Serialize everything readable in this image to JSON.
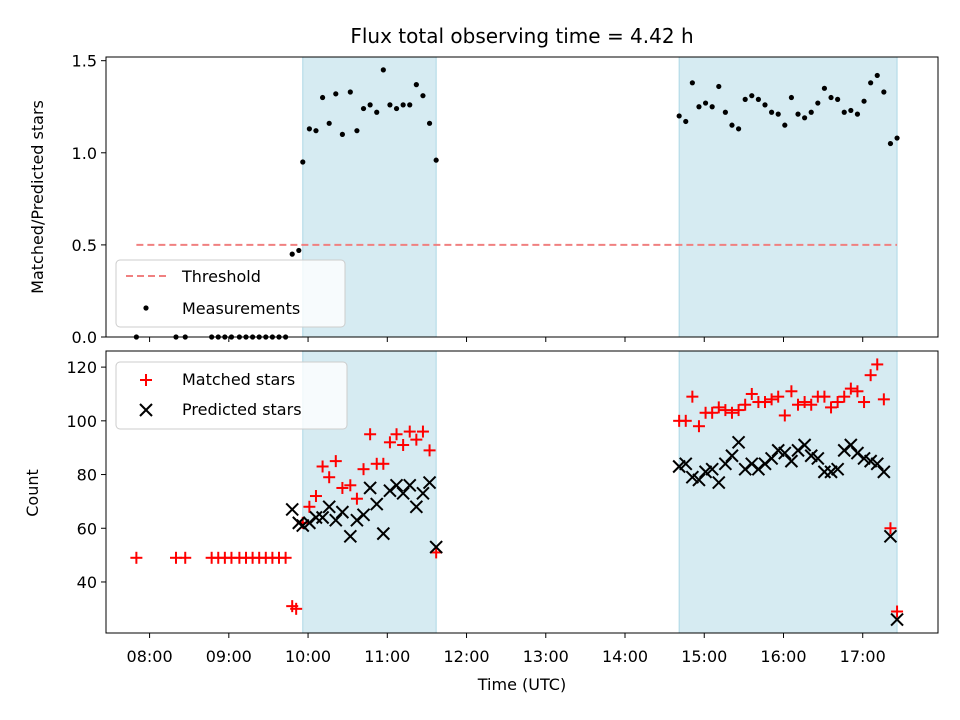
{
  "figure": {
    "title": "Flux total observing time = 4.42 h",
    "xlabel": "Time (UTC)",
    "x_ticks": [
      "08:00",
      "09:00",
      "10:00",
      "11:00",
      "12:00",
      "13:00",
      "14:00",
      "15:00",
      "16:00",
      "17:00"
    ]
  },
  "colors": {
    "band": "#add8e6",
    "threshold": "#f08080",
    "matched": "#ff0000",
    "predicted": "#000000",
    "measurement": "#000000"
  },
  "chart_data": [
    {
      "type": "scatter",
      "panel": "top",
      "ylabel": "Matched/Predicted stars",
      "y_ticks": [
        "0.0",
        "0.5",
        "1.0",
        "1.5"
      ],
      "ylim": [
        0,
        1.52
      ],
      "xlim": [
        "07:27",
        "17:57"
      ],
      "shaded_intervals": [
        [
          "09:56",
          "11:37"
        ],
        [
          "14:41",
          "17:26"
        ]
      ],
      "threshold": {
        "label": "Threshold",
        "value": 0.5,
        "x_range": [
          "07:50",
          "17:26"
        ]
      },
      "legend": {
        "position": "lower-left",
        "entries": [
          "Threshold",
          "Measurements"
        ]
      },
      "series": [
        {
          "name": "Measurements",
          "x": [
            "07:50",
            "08:20",
            "08:27",
            "08:47",
            "08:52",
            "08:57",
            "09:02",
            "09:08",
            "09:13",
            "09:18",
            "09:23",
            "09:28",
            "09:33",
            "09:38",
            "09:43",
            "09:48",
            "09:53",
            "09:56",
            "10:01",
            "10:06",
            "10:11",
            "10:16",
            "10:21",
            "10:26",
            "10:32",
            "10:37",
            "10:42",
            "10:47",
            "10:52",
            "10:57",
            "11:02",
            "11:07",
            "11:12",
            "11:17",
            "11:22",
            "11:27",
            "11:32",
            "11:37",
            "14:41",
            "14:46",
            "14:51",
            "14:56",
            "15:01",
            "15:06",
            "15:11",
            "15:16",
            "15:21",
            "15:26",
            "15:31",
            "15:36",
            "15:41",
            "15:46",
            "15:51",
            "15:56",
            "16:01",
            "16:06",
            "16:11",
            "16:16",
            "16:21",
            "16:26",
            "16:31",
            "16:36",
            "16:41",
            "16:46",
            "16:51",
            "16:56",
            "17:01",
            "17:06",
            "17:11",
            "17:16",
            "17:21",
            "17:26"
          ],
          "y": [
            0,
            0,
            0,
            0,
            0,
            0,
            0,
            0,
            0,
            0,
            0,
            0,
            0,
            0,
            0,
            0.45,
            0.47,
            0.95,
            1.13,
            1.12,
            1.3,
            1.16,
            1.32,
            1.1,
            1.33,
            1.12,
            1.24,
            1.26,
            1.22,
            1.45,
            1.26,
            1.24,
            1.26,
            1.26,
            1.37,
            1.31,
            1.16,
            0.96,
            1.2,
            1.17,
            1.38,
            1.25,
            1.27,
            1.25,
            1.36,
            1.22,
            1.15,
            1.13,
            1.29,
            1.31,
            1.29,
            1.26,
            1.22,
            1.21,
            1.15,
            1.3,
            1.21,
            1.19,
            1.22,
            1.27,
            1.35,
            1.3,
            1.29,
            1.22,
            1.23,
            1.21,
            1.28,
            1.38,
            1.42,
            1.33,
            1.05,
            1.08
          ]
        }
      ]
    },
    {
      "type": "scatter",
      "panel": "bottom",
      "ylabel": "Count",
      "y_ticks": [
        "40",
        "60",
        "80",
        "100",
        "120"
      ],
      "ylim": [
        21,
        126
      ],
      "xlim": [
        "07:27",
        "17:57"
      ],
      "shaded_intervals": [
        [
          "09:56",
          "11:37"
        ],
        [
          "14:41",
          "17:26"
        ]
      ],
      "legend": {
        "position": "upper-left",
        "entries": [
          "Matched stars",
          "Predicted stars"
        ]
      },
      "series": [
        {
          "name": "Matched stars",
          "marker": "plus",
          "x": [
            "07:50",
            "08:20",
            "08:27",
            "08:47",
            "08:52",
            "08:57",
            "09:02",
            "09:08",
            "09:13",
            "09:18",
            "09:23",
            "09:28",
            "09:33",
            "09:38",
            "09:43",
            "09:48",
            "09:51",
            "09:56",
            "10:01",
            "10:06",
            "10:11",
            "10:16",
            "10:21",
            "10:26",
            "10:32",
            "10:37",
            "10:42",
            "10:47",
            "10:52",
            "10:57",
            "11:02",
            "11:07",
            "11:12",
            "11:17",
            "11:22",
            "11:27",
            "11:32",
            "11:37",
            "14:41",
            "14:46",
            "14:51",
            "14:56",
            "15:01",
            "15:06",
            "15:11",
            "15:16",
            "15:21",
            "15:26",
            "15:31",
            "15:36",
            "15:41",
            "15:46",
            "15:51",
            "15:56",
            "16:01",
            "16:06",
            "16:11",
            "16:16",
            "16:21",
            "16:26",
            "16:31",
            "16:36",
            "16:41",
            "16:46",
            "16:51",
            "16:56",
            "17:01",
            "17:06",
            "17:11",
            "17:16",
            "17:21",
            "17:26"
          ],
          "y": [
            49,
            49,
            49,
            49,
            49,
            49,
            49,
            49,
            49,
            49,
            49,
            49,
            49,
            49,
            49,
            31,
            30,
            62,
            68,
            72,
            83,
            79,
            85,
            75,
            76,
            71,
            82,
            95,
            84,
            84,
            92,
            95,
            91,
            96,
            93,
            96,
            89,
            51,
            100,
            100,
            109,
            98,
            103,
            103,
            105,
            104,
            103,
            104,
            106,
            110,
            107,
            107,
            108,
            109,
            102,
            111,
            106,
            107,
            106,
            109,
            109,
            105,
            107,
            109,
            112,
            111,
            107,
            117,
            121,
            108,
            60,
            29
          ]
        },
        {
          "name": "Predicted stars",
          "marker": "x",
          "x": [
            "09:48",
            "09:53",
            "09:56",
            "10:01",
            "10:06",
            "10:11",
            "10:16",
            "10:21",
            "10:26",
            "10:32",
            "10:37",
            "10:42",
            "10:47",
            "10:52",
            "10:57",
            "11:02",
            "11:07",
            "11:12",
            "11:17",
            "11:22",
            "11:27",
            "11:32",
            "11:37",
            "14:41",
            "14:46",
            "14:51",
            "14:56",
            "15:01",
            "15:06",
            "15:11",
            "15:16",
            "15:21",
            "15:26",
            "15:31",
            "15:36",
            "15:41",
            "15:46",
            "15:51",
            "15:56",
            "16:01",
            "16:06",
            "16:11",
            "16:16",
            "16:21",
            "16:26",
            "16:31",
            "16:36",
            "16:41",
            "16:46",
            "16:51",
            "16:56",
            "17:01",
            "17:06",
            "17:11",
            "17:16",
            "17:21",
            "17:26"
          ],
          "y": [
            67,
            62,
            61,
            62,
            64,
            64,
            68,
            63,
            66,
            57,
            63,
            65,
            75,
            69,
            58,
            74,
            76,
            73,
            76,
            68,
            73,
            77,
            53,
            83,
            84,
            79,
            78,
            81,
            82,
            77,
            84,
            87,
            92,
            82,
            84,
            82,
            84,
            86,
            89,
            88,
            85,
            89,
            91,
            87,
            86,
            81,
            81,
            82,
            89,
            91,
            88,
            86,
            85,
            84,
            81,
            57,
            26
          ]
        }
      ]
    }
  ]
}
